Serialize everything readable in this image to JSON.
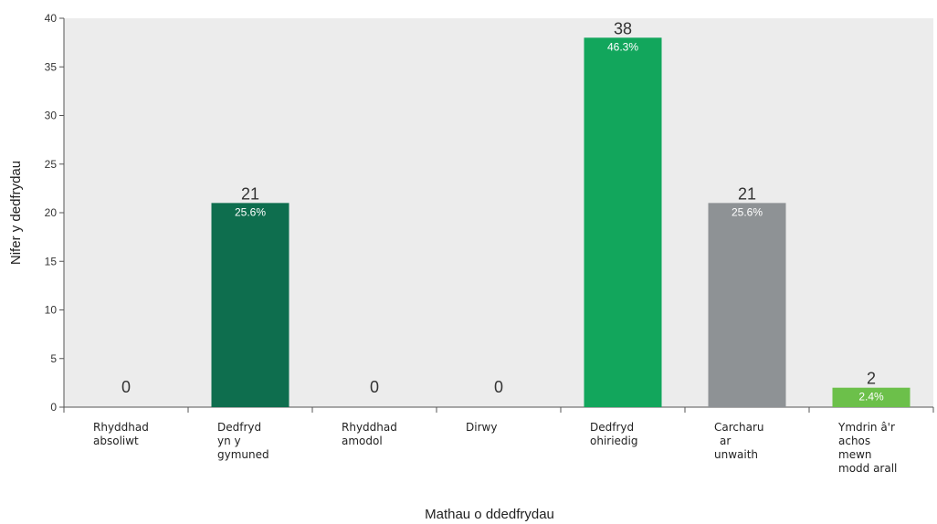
{
  "chart_data": {
    "type": "bar",
    "categories": [
      [
        "Rhyddhad",
        "absoliwt"
      ],
      [
        "Dedfryd",
        "yn y",
        "gymuned"
      ],
      [
        "Rhyddhad",
        "amodol"
      ],
      [
        "Dirwy"
      ],
      [
        "Dedfryd",
        "ohiriedig"
      ],
      [
        "Carcharu",
        "ar",
        "unwaith"
      ],
      [
        "Ymdrin â'r",
        "achos",
        "mewn",
        "modd arall"
      ]
    ],
    "values": [
      0,
      21,
      0,
      0,
      38,
      21,
      2
    ],
    "percent_labels": [
      "",
      "25.6%",
      "",
      "",
      "46.3%",
      "25.6%",
      "2.4%"
    ],
    "value_labels": [
      "0",
      "21",
      "0",
      "0",
      "38",
      "21",
      "2"
    ],
    "bar_colors": [
      "#0e6e4e",
      "#0e6e4e",
      "#0e6e4e",
      "#0e6e4e",
      "#12a65c",
      "#8e9295",
      "#6cc04a"
    ],
    "xlabel": "Mathau o ddedfrydau",
    "ylabel": "Nifer y dedfrydau",
    "ylim": [
      0,
      40
    ],
    "yticks": [
      0,
      5,
      10,
      15,
      20,
      25,
      30,
      35,
      40
    ],
    "grid": false,
    "plot_background": "#ececec"
  }
}
